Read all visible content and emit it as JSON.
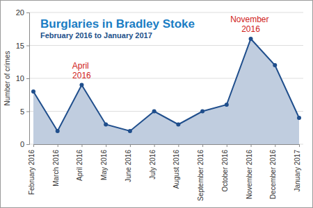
{
  "chart_data": {
    "type": "area",
    "title": "Burglaries in Bradley Stoke",
    "subtitle": "February 2016 to January 2017",
    "y_label": "Number of crimes",
    "categories": [
      "February 2016",
      "March 2016",
      "April 2016",
      "May 2016",
      "June 2016",
      "July 2016",
      "August 2016",
      "September 2016",
      "October 2016",
      "November 2016",
      "December 2016",
      "January 2017"
    ],
    "values": [
      8,
      2,
      9,
      3,
      2,
      5,
      3,
      5,
      6,
      16,
      12,
      4
    ],
    "color": "#1f4e8c",
    "ylim": [
      0,
      20
    ],
    "yticks": [
      0,
      5,
      10,
      15,
      20
    ],
    "grid": true,
    "marker": "circle",
    "annotations": [
      "April 2016",
      "November 2016"
    ]
  }
}
